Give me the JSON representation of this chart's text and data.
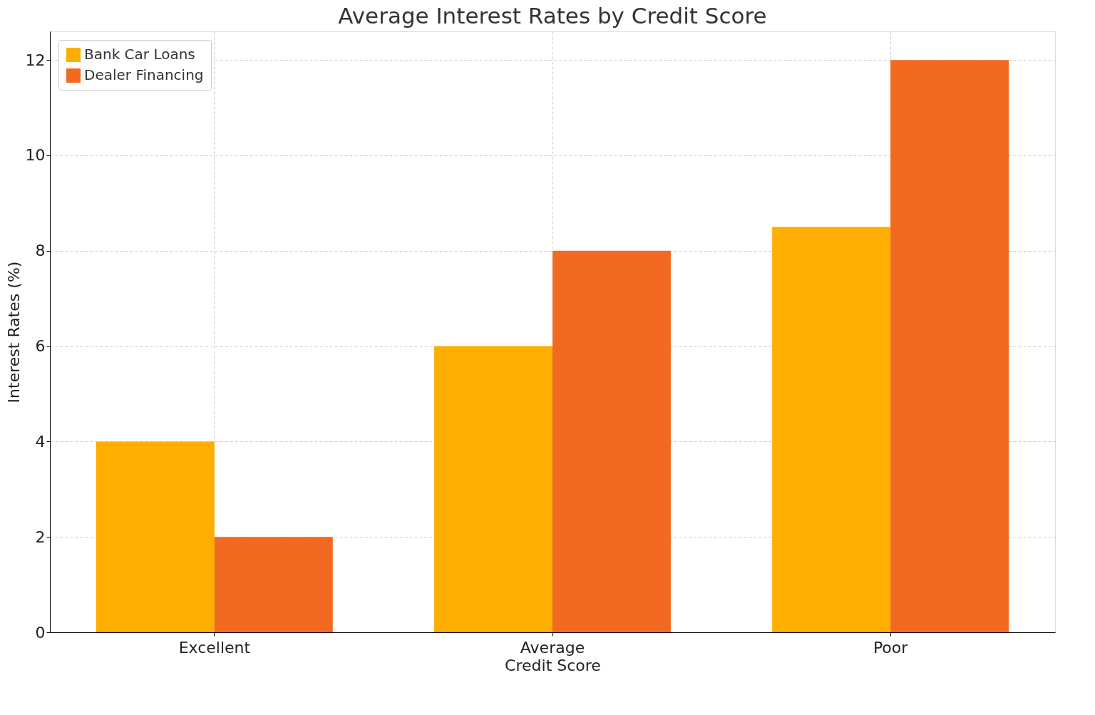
{
  "chart_data": {
    "type": "bar",
    "title": "Average Interest Rates by Credit Score",
    "xlabel": "Credit Score",
    "ylabel": "Interest Rates (%)",
    "categories": [
      "Excellent",
      "Average",
      "Poor"
    ],
    "series": [
      {
        "name": "Bank Car Loans",
        "color": "#fdae00",
        "values": [
          4,
          6,
          8.5
        ]
      },
      {
        "name": "Dealer Financing",
        "color": "#f26a22",
        "values": [
          2,
          8,
          12
        ]
      }
    ],
    "ylim": [
      0,
      12.6
    ],
    "yticks": [
      0,
      2,
      4,
      6,
      8,
      10,
      12
    ],
    "grid": true,
    "legend": "top left"
  }
}
